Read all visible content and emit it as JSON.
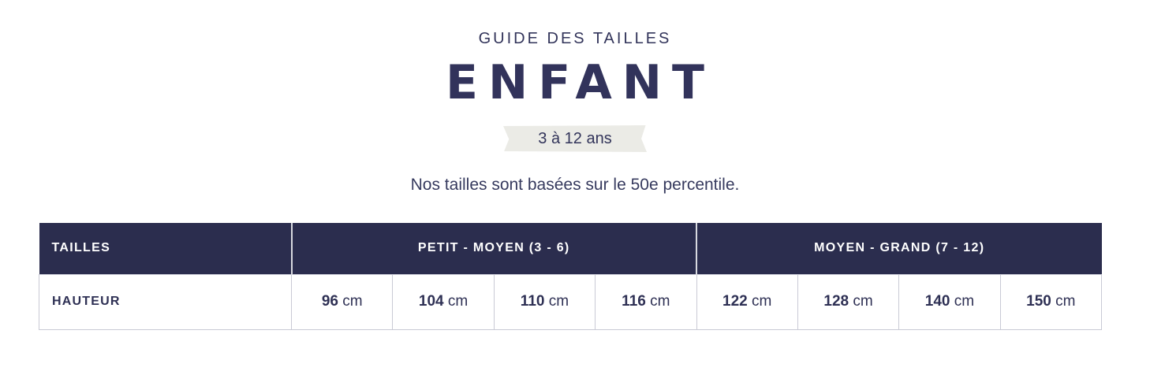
{
  "header": {
    "eyebrow": "GUIDE DES TAILLES",
    "title": "ENFANT",
    "age_range": "3 à 12 ans",
    "subtitle": "Nos tailles sont basées sur le 50e percentile."
  },
  "table": {
    "columns_header": {
      "label": "TAILLES",
      "group_small": "PETIT - MOYEN (3 - 6)",
      "group_large": "MOYEN - GRAND (7 - 12)"
    },
    "unit": "cm",
    "rows": [
      {
        "label": "HAUTEUR",
        "values": [
          "96",
          "104",
          "110",
          "116",
          "122",
          "128",
          "140",
          "150"
        ]
      }
    ]
  },
  "colors": {
    "header_navy": "#2b2d4e",
    "text_navy": "#32345a",
    "ribbon_bg": "#ebebe6",
    "table_border": "#c9cad5"
  }
}
